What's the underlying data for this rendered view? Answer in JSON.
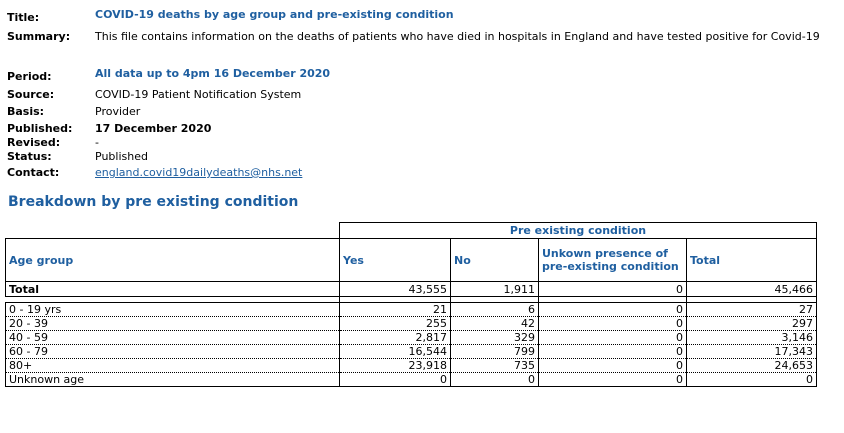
{
  "meta": {
    "title_label": "Title:",
    "title": "COVID-19 deaths by age group and pre-existing condition",
    "summary_label": "Summary:",
    "summary": "This file contains information on the deaths of patients who have died in hospitals in England and have tested positive for Covid-19",
    "period_label": "Period:",
    "period": "All data up to 4pm 16 December 2020",
    "source_label": "Source:",
    "source": "COVID-19 Patient Notification System",
    "basis_label": "Basis:",
    "basis": "Provider",
    "published_label": "Published:",
    "published": "17 December 2020",
    "revised_label": "Revised:",
    "revised": "-",
    "status_label": "Status:",
    "status": "Published",
    "contact_label": "Contact:",
    "contact": "england.covid19dailydeaths@nhs.net"
  },
  "section_title": "Breakdown by pre existing condition",
  "table": {
    "group_header": "Pre existing condition",
    "columns": {
      "age": "Age group",
      "yes": "Yes",
      "no": "No",
      "unknown": "Unkown presence of pre-existing condition",
      "total": "Total"
    },
    "total_row": {
      "age": "Total",
      "yes": "43,555",
      "no": "1,911",
      "unknown": "0",
      "total": "45,466"
    },
    "rows": [
      {
        "age": "0 - 19 yrs",
        "yes": "21",
        "no": "6",
        "unknown": "0",
        "total": "27"
      },
      {
        "age": "20 - 39",
        "yes": "255",
        "no": "42",
        "unknown": "0",
        "total": "297"
      },
      {
        "age": "40 - 59",
        "yes": "2,817",
        "no": "329",
        "unknown": "0",
        "total": "3,146"
      },
      {
        "age": "60 - 79",
        "yes": "16,544",
        "no": "799",
        "unknown": "0",
        "total": "17,343"
      },
      {
        "age": "80+",
        "yes": "23,918",
        "no": "735",
        "unknown": "0",
        "total": "24,653"
      },
      {
        "age": "Unknown age",
        "yes": "0",
        "no": "0",
        "unknown": "0",
        "total": "0"
      }
    ]
  }
}
